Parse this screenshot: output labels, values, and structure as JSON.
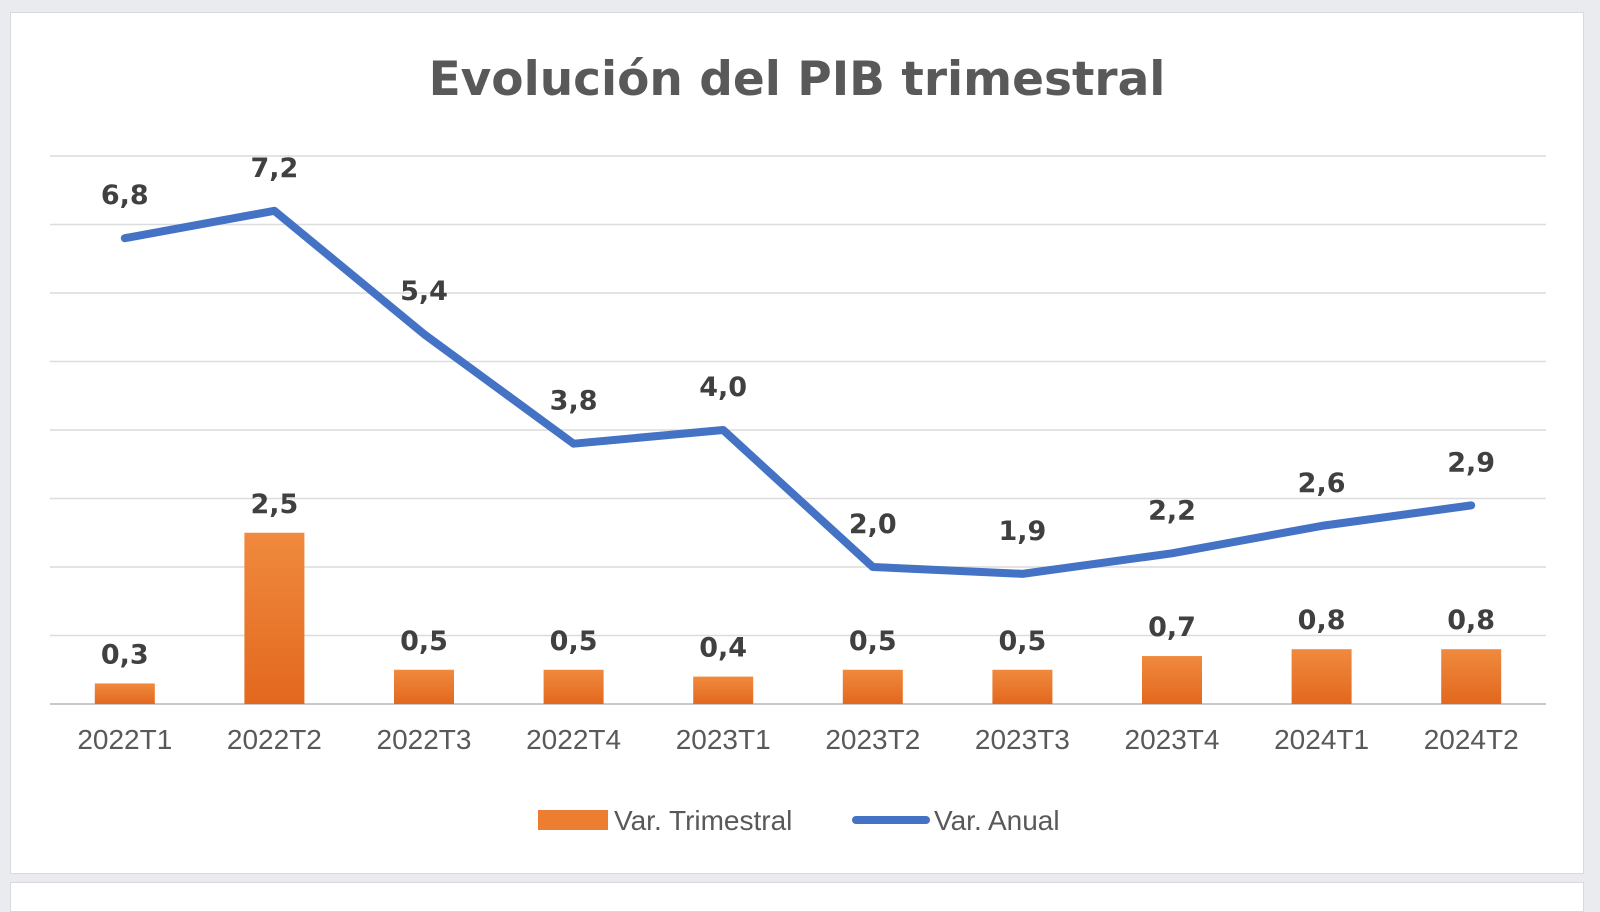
{
  "chart_data": {
    "type": "bar",
    "title": "Evolución del PIB trimestral",
    "categories": [
      "2022T1",
      "2022T2",
      "2022T3",
      "2022T4",
      "2023T1",
      "2023T2",
      "2023T3",
      "2023T4",
      "2024T1",
      "2024T2"
    ],
    "series": [
      {
        "name": "Var. Trimestral",
        "kind": "bar",
        "color": "#ED7D31",
        "values": [
          0.3,
          2.5,
          0.5,
          0.5,
          0.4,
          0.5,
          0.5,
          0.7,
          0.8,
          0.8
        ],
        "labels": [
          "0,3",
          "2,5",
          "0,5",
          "0,5",
          "0,4",
          "0,5",
          "0,5",
          "0,7",
          "0,8",
          "0,8"
        ]
      },
      {
        "name": "Var. Anual",
        "kind": "line",
        "color": "#4472C4",
        "values": [
          6.8,
          7.2,
          5.4,
          3.8,
          4.0,
          2.0,
          1.9,
          2.2,
          2.6,
          2.9
        ],
        "labels": [
          "6,8",
          "7,2",
          "5,4",
          "3,8",
          "4,0",
          "2,0",
          "1,9",
          "2,2",
          "2,6",
          "2,9"
        ]
      }
    ],
    "xlabel": "",
    "ylabel": "",
    "ylim": [
      0,
      8
    ],
    "grid": true,
    "legend": "bottom"
  }
}
